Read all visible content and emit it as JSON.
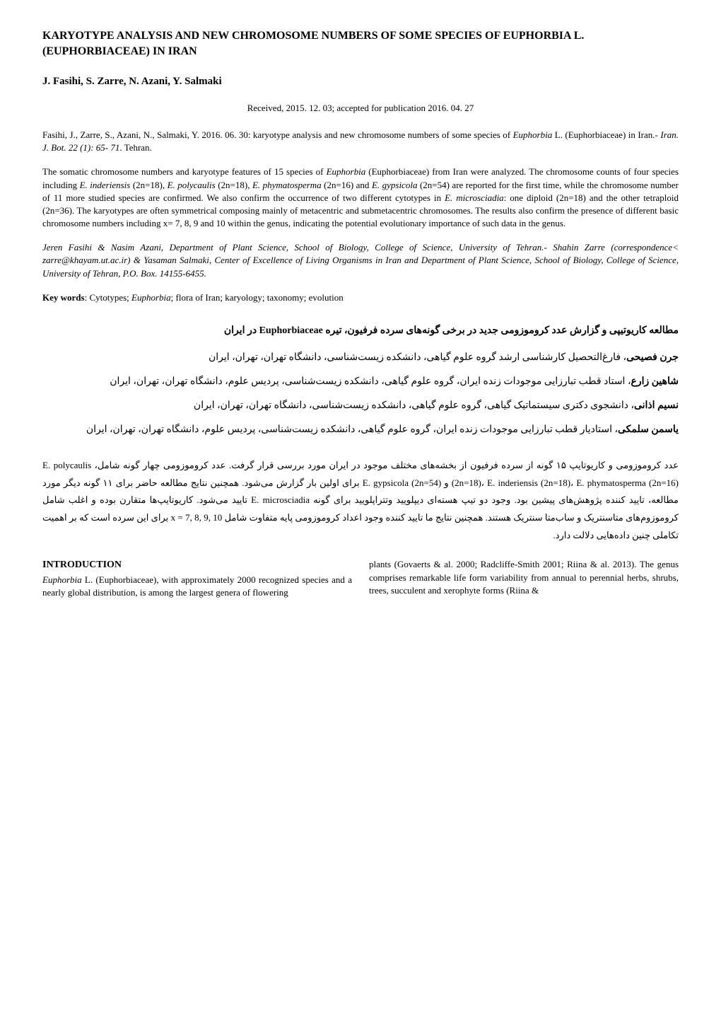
{
  "title": "KARYOTYPE ANALYSIS AND NEW CHROMOSOME NUMBERS OF SOME SPECIES OF EUPHORBIA L. (EUPHORBIACEAE) IN IRAN",
  "authors": "J. Fasihi, S. Zarre, N. Azani, Y. Salmaki",
  "dates": "Received, 2015. 12. 03; accepted for publication 2016. 04. 27",
  "citation_prefix": "Fasihi, J., Zarre, S., Azani, N., Salmaki, Y. 2016. 06. 30: karyotype analysis and new chromosome numbers of some species of ",
  "citation_species": "Euphorbia",
  "citation_mid": " L. (Euphorbiaceae) in Iran.- ",
  "citation_journal": "Iran. J. Bot. 22 (1): 65- 71",
  "citation_suffix": ". Tehran.",
  "abstract_p1": "The somatic chromosome numbers and karyotype features of 15 species of ",
  "abstract_sp1": "Euphorbia",
  "abstract_p2": " (Euphorbiaceae) from Iran were analyzed. The chromosome counts of four species including ",
  "abstract_sp2": "E. inderiensis",
  "abstract_p3": " (2n=18), ",
  "abstract_sp3": "E. polycaulis",
  "abstract_p4": " (2n=18), ",
  "abstract_sp4": "E. phymatosperma",
  "abstract_p5": " (2n=16) and ",
  "abstract_sp5": "E. gypsicola",
  "abstract_p6": " (2n=54) are reported for the first time, while the chromosome number of 11 more studied species are confirmed. We also confirm the occurrence of two different cytotypes in ",
  "abstract_sp6": "E. microsciadia",
  "abstract_p7": ": one diploid (2n=18) and the other tetraploid (2n=36). The karyotypes are often symmetrical composing mainly of metacentric and submetacentric chromosomes. The results also confirm the presence of different basic chromosome numbers including x= 7, 8, 9 and 10 within the genus, indicating the potential evolutionary importance of such data in the genus.",
  "affil_p1": "Jeren Fasihi & Nasim Azani, Department of Plant Science, School of Biology, College of Science, University of Tehran",
  "affil_p2": ".- ",
  "affil_p3": "Shahin Zarre (correspondence< zarre@khayam.ut.ac.ir) & Yasaman Salmaki, Center of Excellence of Living Organisms in Iran and Department of Plant Science, School of Biology, College of Science, University of Tehran, P.O. Box. 14155-6455.",
  "keywords_label": "Key words",
  "keywords_p1": ": Cytotypes; ",
  "keywords_sp": "Euphorbia",
  "keywords_p2": "; flora of Iran; karyology; taxonomy; evolution",
  "persian": {
    "title": "مطالعه کاریوتیپی و گزارش عدد کروموزومی جدید در برخی گونه‌های سرده فرفیون، تیره Euphorbiaceae در ایران",
    "a1_name": "جرن فصیحی",
    "a1_rest": "، فارغ‌التحصیل کارشناسی ارشد گروه علوم گیاهی، دانشکده زیست‌شناسی، دانشگاه تهران، تهران، ایران",
    "a2_name": "شاهین زارع",
    "a2_rest": "، استاد قطب تبارزایی موجودات زنده ایران، گروه علوم گیاهی، دانشکده زیست‌شناسی، پردیس علوم، دانشگاه تهران، تهران، ایران",
    "a3_name": "نسیم اذانی",
    "a3_rest": "، دانشجوی دکتری سیستماتیک گیاهی، گروه علوم گیاهی، دانشکده زیست‌شناسی، دانشگاه تهران، تهران، ایران",
    "a4_name": "یاسمن سلمکی",
    "a4_rest": "، استادیار قطب تبارزایی موجودات زنده ایران، گروه علوم گیاهی، دانشکده زیست‌شناسی، پردیس علوم، دانشگاه تهران، تهران، ایران",
    "abstract": "عدد کروموزومی و کاریوتایپ ۱۵ گونه از سرده فرفیون از بخشه‌های مختلف موجود در ایران مورد بررسی قرار گرفت. عدد کروموزومی چهار گونه شامل، E. polycaulis (2n=18)، E. inderiensis (2n=18)، E. phymatosperma (2n=16) و E. gypsicola (2n=54) برای اولین بار گزارش می‌شود. همچنین نتایج مطالعه حاضر برای ۱۱ گونه دیگر مورد مطالعه، تایید کننده پژوهش‌های پیشین بود. وجود دو تیپ هسته‌ای دیپلویید وتتراپلویید برای گونه E. microsciadia تایید می‌شود. کاریوتایپ‌ها متقارن بوده و اغلب شامل کروموزوم‌های متاسنتریک و ساب‌متا سنتریک هستند. همچنین نتایج ما تایید کننده وجود اعداد کروموزومی پایه متفاوت شامل x = 7, 8, 9, 10 برای این سرده است که بر اهمیت تکاملی چنین داده‌هایی دلالت دارد."
  },
  "intro_heading": "INTRODUCTION",
  "intro_col1_sp": "Euphorbia",
  "intro_col1_p1": " L. (Euphorbiaceae), with approximately 2000 recognized species and a nearly global distribution, is among the largest genera of flowering",
  "intro_col2": "plants (Govaerts & al. 2000; Radcliffe-Smith 2001; Riina & al. 2013). The genus comprises remarkable life form variability from annual to perennial herbs, shrubs, trees, succulent and xerophyte forms (Riina &"
}
